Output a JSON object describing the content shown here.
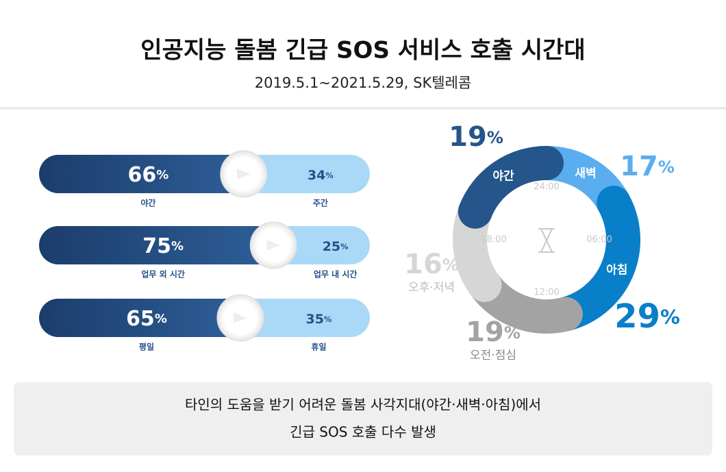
{
  "title": "인공지능 돌봄 긴급 SOS 서비스 호출 시간대",
  "subtitle": "2019.5.1~2021.5.29, SK텔레콤",
  "chart_data": [
    {
      "type": "bar",
      "stacked": true,
      "orientation": "horizontal",
      "colors": [
        "#24508a",
        "#a9d9f7"
      ],
      "rows": [
        {
          "labels": [
            "야간",
            "주간"
          ],
          "values": [
            66,
            34
          ],
          "value_labels": [
            "66%",
            "34%"
          ]
        },
        {
          "labels": [
            "업무 외 시간",
            "업무 내 시간"
          ],
          "values": [
            75,
            25
          ],
          "value_labels": [
            "75%",
            "25%"
          ]
        },
        {
          "labels": [
            "평일",
            "휴일"
          ],
          "values": [
            65,
            35
          ],
          "value_labels": [
            "65%",
            "35%"
          ]
        }
      ]
    },
    {
      "type": "donut",
      "categories": [
        "새벽",
        "아침",
        "오전·점심",
        "오후·저녁",
        "야간"
      ],
      "values": [
        17,
        29,
        19,
        16,
        19
      ],
      "value_labels": [
        "17%",
        "29%",
        "19%",
        "16%",
        "19%"
      ],
      "colors": [
        "#5aaef0",
        "#0a7fc9",
        "#a3a3a3",
        "#d6d6d6",
        "#24558b"
      ],
      "label_position": [
        "inside",
        "inside",
        "outside",
        "outside",
        "inside"
      ],
      "clock_labels": [
        "24:00",
        "06:00",
        "12:00",
        "18:00"
      ]
    }
  ],
  "footer": [
    "타인의 도움을 받기 어려운 돌봄 사각지대(야간·새벽·아침)에서",
    "긴급 SOS 호출 다수 발생"
  ]
}
